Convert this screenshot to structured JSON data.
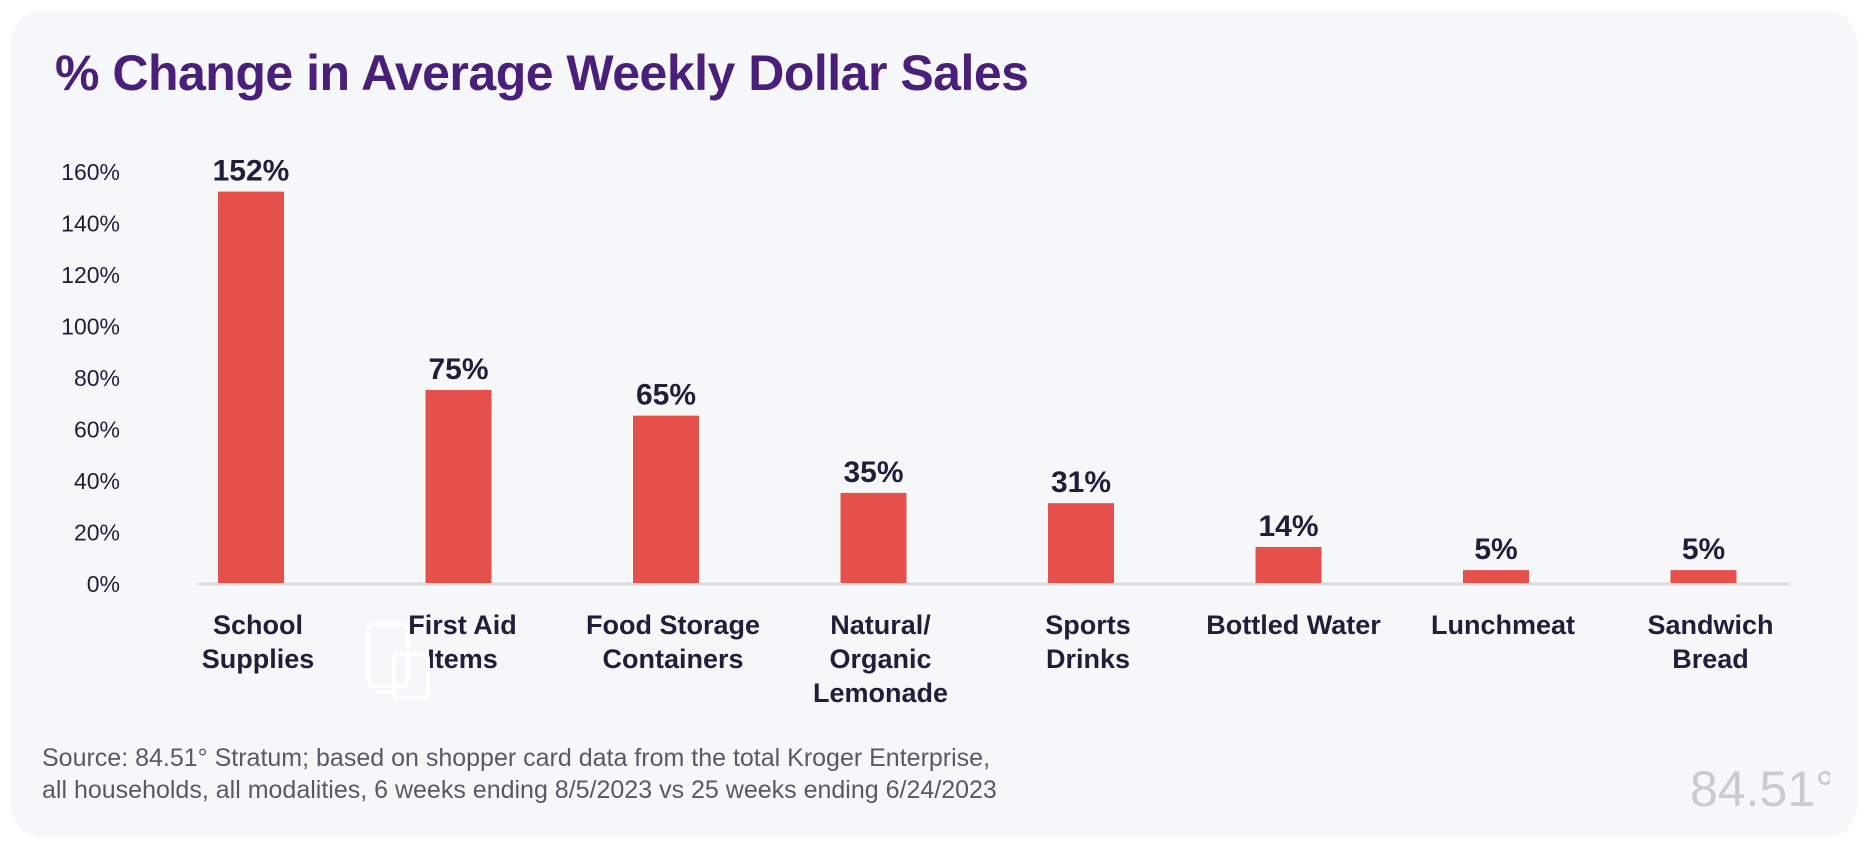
{
  "title": "% Change in Average Weekly Dollar Sales",
  "source_lines": [
    "Source: 84.51° Stratum; based on shopper card data from the total Kroger Enterprise,",
    "all households, all modalities, 6 weeks ending 8/5/2023 vs 25 weeks ending 6/24/2023"
  ],
  "logo": {
    "text": "84.51°"
  },
  "colors": {
    "bar": "#e5504a",
    "title": "#4a1f7a",
    "label": "#1f1f3a",
    "axis": "#d9dbe0",
    "card_bg": "#f6f7f9"
  },
  "chart_data": {
    "type": "bar",
    "title": "% Change in Average Weekly Dollar Sales",
    "xlabel": "",
    "ylabel": "",
    "ylim": [
      0,
      160
    ],
    "ytick_step": 20,
    "ytick_suffix": "%",
    "grid": false,
    "categories": [
      [
        "School",
        "Supplies"
      ],
      [
        "First Aid",
        "Items"
      ],
      [
        "Food Storage",
        "Containers"
      ],
      [
        "Natural/",
        "Organic",
        "Lemonade"
      ],
      [
        "Sports",
        "Drinks"
      ],
      [
        "Bottled Water"
      ],
      [
        "Lunchmeat"
      ],
      [
        "Sandwich",
        "Bread"
      ]
    ],
    "values": [
      152,
      75,
      65,
      35,
      31,
      14,
      5,
      5
    ],
    "data_labels": [
      "152%",
      "75%",
      "65%",
      "35%",
      "31%",
      "14%",
      "5%",
      "5%"
    ]
  }
}
